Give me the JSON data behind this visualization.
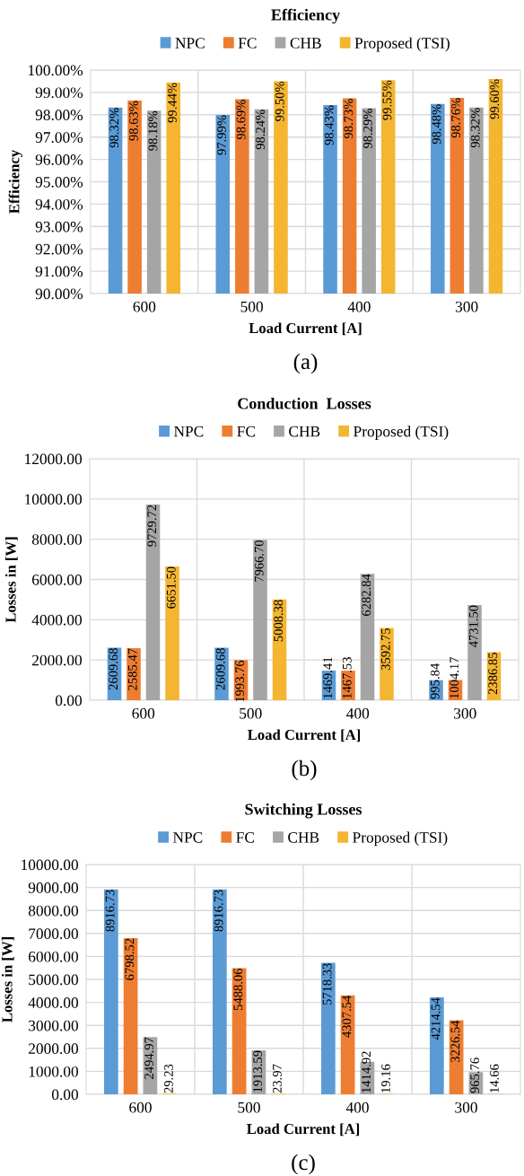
{
  "chart_data": [
    {
      "type": "bar",
      "title": "Efficiency",
      "xlabel": "Load Current [A]",
      "ylabel": "Efficiency",
      "categories": [
        "600",
        "500",
        "400",
        "300"
      ],
      "ylim": [
        90,
        100
      ],
      "yticks": [
        {
          "value": 90,
          "label": "90.00%"
        },
        {
          "value": 91,
          "label": "91.00%"
        },
        {
          "value": 92,
          "label": "92.00%"
        },
        {
          "value": 93,
          "label": "93.00%"
        },
        {
          "value": 94,
          "label": "94.00%"
        },
        {
          "value": 95,
          "label": "95.00%"
        },
        {
          "value": 96,
          "label": "96.00%"
        },
        {
          "value": 97,
          "label": "97.00%"
        },
        {
          "value": 98,
          "label": "98.00%"
        },
        {
          "value": 99,
          "label": "99.00%"
        },
        {
          "value": 100,
          "label": "100.00%"
        }
      ],
      "grid": true,
      "legend": "top",
      "annotations": [
        "(a)"
      ],
      "series": [
        {
          "name": "NPC",
          "color": "#5b9bd5",
          "values": [
            98.32,
            97.99,
            98.43,
            98.48
          ],
          "value_labels": [
            "98.32%",
            "97.99%",
            "98.43%",
            "98.48%"
          ]
        },
        {
          "name": "FC",
          "color": "#ed7d31",
          "values": [
            98.63,
            98.69,
            98.73,
            98.76
          ],
          "value_labels": [
            "98.63%",
            "98.69%",
            "98.73%",
            "98.76%"
          ]
        },
        {
          "name": "CHB",
          "color": "#a5a5a5",
          "values": [
            98.18,
            98.24,
            98.29,
            98.32
          ],
          "value_labels": [
            "98.18%",
            "98.24%",
            "98.29%",
            "98.32%"
          ]
        },
        {
          "name": "Proposed (TSI)",
          "color": "#f4b531",
          "values": [
            99.44,
            99.5,
            99.55,
            99.6
          ],
          "value_labels": [
            "99.44%",
            "99.50%",
            "99.55%",
            "99.60%"
          ]
        }
      ]
    },
    {
      "type": "bar",
      "title": "Conduction  Losses",
      "xlabel": "Load Current [A]",
      "ylabel": "Losses in [W]",
      "categories": [
        "600",
        "500",
        "400",
        "300"
      ],
      "ylim": [
        0,
        12000
      ],
      "yticks": [
        {
          "value": 0,
          "label": "0.00"
        },
        {
          "value": 2000,
          "label": "2000.00"
        },
        {
          "value": 4000,
          "label": "4000.00"
        },
        {
          "value": 6000,
          "label": "6000.00"
        },
        {
          "value": 8000,
          "label": "8000.00"
        },
        {
          "value": 10000,
          "label": "10000.00"
        },
        {
          "value": 12000,
          "label": "12000.00"
        }
      ],
      "grid": true,
      "legend": "top",
      "annotations": [
        "(b)"
      ],
      "series": [
        {
          "name": "NPC",
          "color": "#5b9bd5",
          "values": [
            2609.68,
            2609.68,
            1469.41,
            995.84
          ],
          "value_labels": [
            "2609.68",
            "2609.68",
            "1469.41",
            "995.84"
          ]
        },
        {
          "name": "FC",
          "color": "#ed7d31",
          "values": [
            2585.47,
            1993.76,
            1467.53,
            1004.17
          ],
          "value_labels": [
            "2585.47",
            "1993.76",
            "1467.53",
            "1004.17"
          ]
        },
        {
          "name": "CHB",
          "color": "#a5a5a5",
          "values": [
            9729.72,
            7966.7,
            6282.84,
            4731.5
          ],
          "value_labels": [
            "9729.72",
            "7966.70",
            "6282.84",
            "4731.50"
          ]
        },
        {
          "name": "Proposed (TSI)",
          "color": "#f4b531",
          "values": [
            6651.5,
            5008.38,
            3592.75,
            2386.85
          ],
          "value_labels": [
            "6651.50",
            "5008.38",
            "3592.75",
            "2386.85"
          ]
        }
      ]
    },
    {
      "type": "bar",
      "title": "Switching Losses",
      "xlabel": "Load Current [A]",
      "ylabel": "Losses in [W]",
      "categories": [
        "600",
        "500",
        "400",
        "300"
      ],
      "ylim": [
        0,
        10000
      ],
      "yticks": [
        {
          "value": 0,
          "label": "0.00"
        },
        {
          "value": 1000,
          "label": "1000.00"
        },
        {
          "value": 2000,
          "label": "2000.00"
        },
        {
          "value": 3000,
          "label": "3000.00"
        },
        {
          "value": 4000,
          "label": "4000.00"
        },
        {
          "value": 5000,
          "label": "5000.00"
        },
        {
          "value": 6000,
          "label": "6000.00"
        },
        {
          "value": 7000,
          "label": "7000.00"
        },
        {
          "value": 8000,
          "label": "8000.00"
        },
        {
          "value": 9000,
          "label": "9000.00"
        },
        {
          "value": 10000,
          "label": "10000.00"
        }
      ],
      "grid": true,
      "legend": "top",
      "annotations": [
        "(c)"
      ],
      "series": [
        {
          "name": "NPC",
          "color": "#5b9bd5",
          "values": [
            8916.73,
            8916.73,
            5718.33,
            4214.54
          ],
          "value_labels": [
            "8916.73",
            "8916.73",
            "5718.33",
            "4214.54"
          ]
        },
        {
          "name": "FC",
          "color": "#ed7d31",
          "values": [
            6798.52,
            5488.06,
            4307.54,
            3226.54
          ],
          "value_labels": [
            "6798.52",
            "5488.06",
            "4307.54",
            "3226.54"
          ]
        },
        {
          "name": "CHB",
          "color": "#a5a5a5",
          "values": [
            2494.97,
            1913.59,
            1414.92,
            965.76
          ],
          "value_labels": [
            "2494.97",
            "1913.59",
            "1414.92",
            "965.76"
          ]
        },
        {
          "name": "Proposed (TSI)",
          "color": "#f4b531",
          "values": [
            29.23,
            23.97,
            19.16,
            14.66
          ],
          "value_labels": [
            "29.23",
            "23.97",
            "19.16",
            "14.66"
          ]
        }
      ]
    }
  ]
}
